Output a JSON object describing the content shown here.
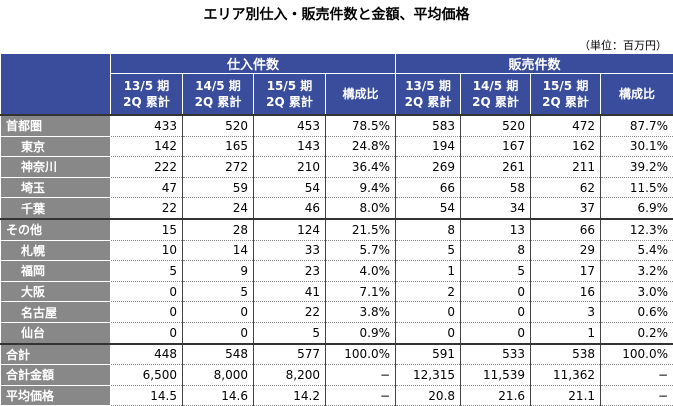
{
  "header": {
    "title": "エリア別仕入・販売件数と金額、平均価格",
    "unit": "（単位：百万円）",
    "groups": [
      "仕入件数",
      "販売件数"
    ],
    "columns": [
      [
        "13/5 期",
        "2Q 累計"
      ],
      [
        "14/5 期",
        "2Q 累計"
      ],
      [
        "15/5 期",
        "2Q 累計"
      ],
      [
        "構成比"
      ],
      [
        "13/5 期",
        "2Q 累計"
      ],
      [
        "14/5 期",
        "2Q 累計"
      ],
      [
        "15/5 期",
        "2Q 累計"
      ],
      [
        "構成比"
      ]
    ]
  },
  "rows": [
    {
      "label": "首都圏",
      "cells": [
        "433",
        "520",
        "453",
        "78.5%",
        "583",
        "520",
        "472",
        "87.7%"
      ],
      "children": [
        {
          "label": "東京",
          "cells": [
            "142",
            "165",
            "143",
            "24.8%",
            "194",
            "167",
            "162",
            "30.1%"
          ]
        },
        {
          "label": "神奈川",
          "cells": [
            "222",
            "272",
            "210",
            "36.4%",
            "269",
            "261",
            "211",
            "39.2%"
          ]
        },
        {
          "label": "埼玉",
          "cells": [
            "47",
            "59",
            "54",
            "9.4%",
            "66",
            "58",
            "62",
            "11.5%"
          ]
        },
        {
          "label": "千葉",
          "cells": [
            "22",
            "24",
            "46",
            "8.0%",
            "54",
            "34",
            "37",
            "6.9%"
          ]
        }
      ]
    },
    {
      "label": "その他",
      "cells": [
        "15",
        "28",
        "124",
        "21.5%",
        "8",
        "13",
        "66",
        "12.3%"
      ],
      "children": [
        {
          "label": "札幌",
          "cells": [
            "10",
            "14",
            "33",
            "5.7%",
            "5",
            "8",
            "29",
            "5.4%"
          ]
        },
        {
          "label": "福岡",
          "cells": [
            "5",
            "9",
            "23",
            "4.0%",
            "1",
            "5",
            "17",
            "3.2%"
          ]
        },
        {
          "label": "大阪",
          "cells": [
            "0",
            "5",
            "41",
            "7.1%",
            "2",
            "0",
            "16",
            "3.0%"
          ]
        },
        {
          "label": "名古屋",
          "cells": [
            "0",
            "0",
            "22",
            "3.8%",
            "0",
            "0",
            "3",
            "0.6%"
          ]
        },
        {
          "label": "仙台",
          "cells": [
            "0",
            "0",
            "5",
            "0.9%",
            "0",
            "0",
            "1",
            "0.2%"
          ]
        }
      ]
    },
    {
      "label": "合計",
      "cells": [
        "448",
        "548",
        "577",
        "100.0%",
        "591",
        "533",
        "538",
        "100.0%"
      ]
    },
    {
      "label": "合計金額",
      "cells": [
        "6,500",
        "8,000",
        "8,200",
        "−",
        "12,315",
        "11,539",
        "11,362",
        "−"
      ]
    },
    {
      "label": "平均価格",
      "cells": [
        "14.5",
        "14.6",
        "14.2",
        "−",
        "20.8",
        "21.6",
        "21.1",
        "−"
      ]
    }
  ]
}
